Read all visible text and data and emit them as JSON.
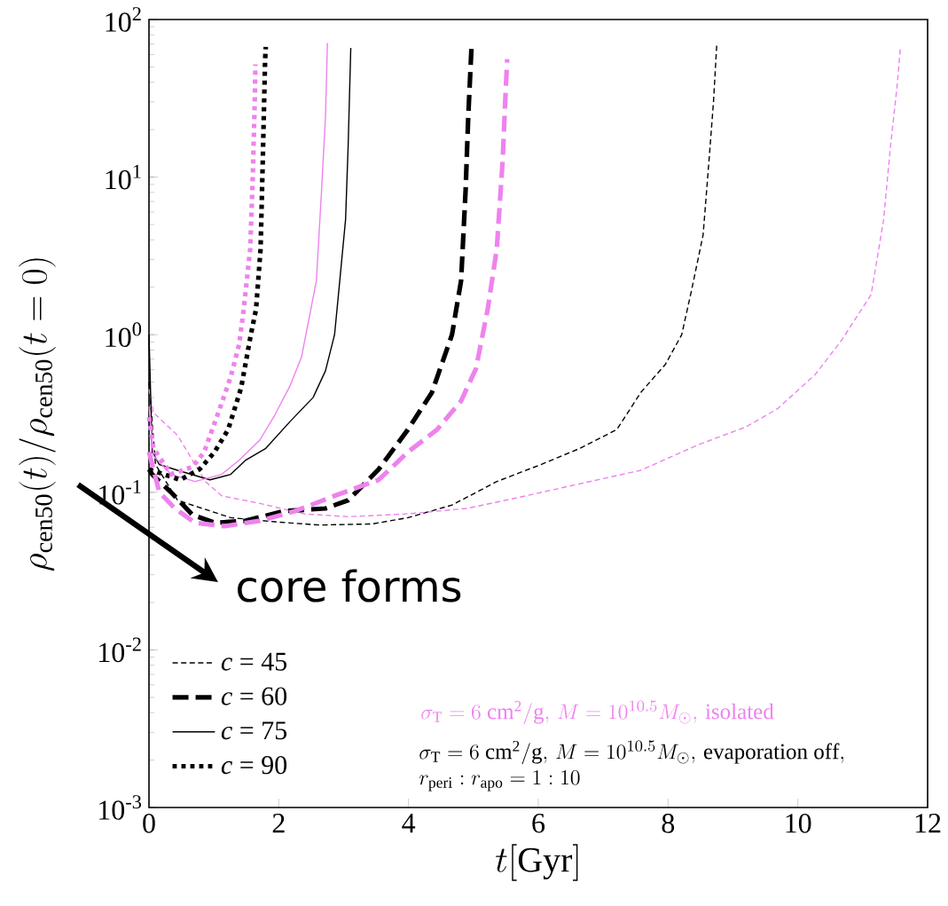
{
  "chart_data": {
    "type": "line",
    "xlabel": "t[{\\rm Gyr}]",
    "ylabel": "\\rho_{\\rm cen50}(t)/\\rho_{\\rm cen50}(t=0)",
    "log": "y",
    "xlim": [
      0,
      12
    ],
    "ylim": [
      0.001,
      100
    ],
    "xticks": [
      0,
      2,
      4,
      6,
      8,
      10,
      12
    ],
    "yticks": [
      {
        "value": 0.001,
        "label": "10$^{-3}$"
      },
      {
        "value": 0.01,
        "label": "10$^{-2}$"
      },
      {
        "value": 0.1,
        "label": "10$^{-1}$"
      },
      {
        "value": 1,
        "label": "10$^{0}$"
      },
      {
        "value": 10,
        "label": "10$^{1}$"
      },
      {
        "value": 100,
        "label": "10$^{2}$"
      }
    ],
    "legend": "bottom left",
    "annotations": [
      "core forms",
      "\\sigma_{\\rm T}=6\\ {\\rm cm^2/g},\\,M=10^{10.5}M_{\\odot},\\,{\\rm isolated}",
      "\\sigma_{\\rm T}=6\\ {\\rm cm^2/g},\\,M=10^{10.5}M_{\\odot},\\,{\\rm evaporation\\ off},",
      "r_{\\rm peri}:r_{\\rm apo}=1:10"
    ],
    "series": [
      {
        "name": "*c* = 45",
        "color": "#000000",
        "line_style": "dashed",
        "x": [
          0,
          0.1,
          0.44,
          1.26,
          1.94,
          2.62,
          3.44,
          3.99,
          4.67,
          5.36,
          6.04,
          6.64,
          7.21,
          7.58,
          7.96,
          8.21,
          8.36,
          8.54,
          8.63,
          8.7,
          8.75
        ],
        "values": [
          0.5,
          0.15,
          0.089,
          0.069,
          0.065,
          0.062,
          0.063,
          0.069,
          0.083,
          0.117,
          0.15,
          0.19,
          0.25,
          0.43,
          0.65,
          1.0,
          1.9,
          4.3,
          12.6,
          30,
          69
        ]
      },
      {
        "color": "#ee82ee",
        "line_style": "dashed",
        "x": [
          0,
          0.07,
          0.44,
          0.87,
          1.12,
          1.71,
          2.39,
          3.07,
          3.99,
          4.9,
          5.81,
          6.5,
          7.58,
          8.46,
          9.2,
          9.69,
          10.27,
          10.68,
          11.13,
          11.32,
          11.43,
          11.53,
          11.58
        ],
        "values": [
          0.45,
          0.32,
          0.23,
          0.117,
          0.095,
          0.085,
          0.073,
          0.07,
          0.073,
          0.079,
          0.095,
          0.11,
          0.138,
          0.2,
          0.26,
          0.34,
          0.56,
          0.93,
          1.8,
          5.3,
          16,
          38,
          66
        ]
      },
      {
        "name": "*c* = 60",
        "color": "#000000",
        "line_style": "dashed",
        "x": [
          0,
          0.05,
          0.34,
          0.67,
          1.02,
          1.49,
          2.08,
          2.72,
          3.07,
          3.54,
          3.99,
          4.36,
          4.67,
          4.81,
          4.88,
          4.92,
          4.97
        ],
        "values": [
          0.14,
          0.13,
          0.1,
          0.072,
          0.064,
          0.066,
          0.076,
          0.079,
          0.089,
          0.14,
          0.25,
          0.43,
          1.0,
          2.2,
          8.3,
          24,
          66
        ]
      },
      {
        "color": "#ee82ee",
        "line_style": "dashed",
        "x": [
          0,
          0.16,
          0.4,
          0.71,
          1.16,
          1.71,
          2.25,
          2.86,
          3.54,
          3.99,
          4.44,
          4.81,
          5.04,
          5.12,
          5.22,
          5.36,
          5.45,
          5.49,
          5.52
        ],
        "values": [
          0.18,
          0.1,
          0.079,
          0.064,
          0.061,
          0.066,
          0.076,
          0.095,
          0.12,
          0.18,
          0.25,
          0.38,
          0.61,
          0.9,
          1.45,
          3.5,
          12.6,
          30,
          56
        ]
      },
      {
        "name": "*c* = 75",
        "color": "#000000",
        "line_style": "solid",
        "x": [
          0,
          0.05,
          0.16,
          0.44,
          0.94,
          1.26,
          1.49,
          1.8,
          2.17,
          2.53,
          2.72,
          2.86,
          2.92,
          3.03,
          3.07,
          3.11
        ],
        "values": [
          1.0,
          0.18,
          0.15,
          0.138,
          0.12,
          0.13,
          0.16,
          0.19,
          0.28,
          0.4,
          0.59,
          1.0,
          1.8,
          5.4,
          16,
          66
        ]
      },
      {
        "color": "#ee82ee",
        "line_style": "solid",
        "x": [
          0,
          0.07,
          0.34,
          0.71,
          1.12,
          1.39,
          1.71,
          1.94,
          2.17,
          2.35,
          2.58,
          2.66,
          2.72,
          2.75
        ],
        "values": [
          0.35,
          0.17,
          0.13,
          0.117,
          0.13,
          0.16,
          0.215,
          0.31,
          0.47,
          0.72,
          2.2,
          8.3,
          24,
          71
        ]
      },
      {
        "name": "*c* = 90",
        "color": "#000000",
        "line_style": "dotted",
        "x": [
          0,
          0.23,
          0.48,
          0.78,
          1.01,
          1.22,
          1.42,
          1.57,
          1.65,
          1.72,
          1.75,
          1.79,
          1.8
        ],
        "values": [
          0.14,
          0.13,
          0.12,
          0.14,
          0.18,
          0.25,
          0.46,
          1.0,
          1.45,
          3.5,
          11,
          56,
          67
        ]
      },
      {
        "color": "#ee82ee",
        "line_style": "dotted",
        "x": [
          0,
          0.07,
          0.34,
          0.67,
          0.85,
          1.08,
          1.26,
          1.39,
          1.46,
          1.56,
          1.6,
          1.63,
          1.64
        ],
        "values": [
          0.3,
          0.19,
          0.13,
          0.145,
          0.18,
          0.33,
          0.54,
          0.87,
          1.45,
          3.5,
          10.2,
          30,
          52
        ]
      }
    ]
  }
}
